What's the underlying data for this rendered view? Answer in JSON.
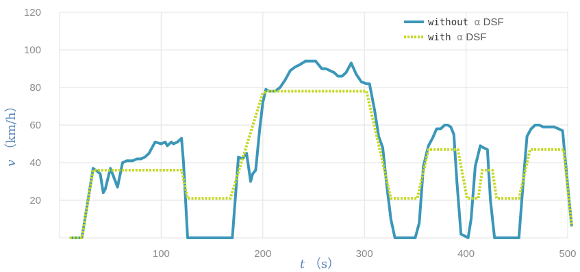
{
  "chart_data": {
    "type": "line",
    "title": "",
    "xlabel": {
      "var": "t",
      "unit": "（s）"
    },
    "ylabel": {
      "var": "v",
      "unit": "（km/h）"
    },
    "xlim": [
      0,
      500
    ],
    "ylim": [
      0,
      120
    ],
    "xticks": [
      100,
      200,
      300,
      400,
      500
    ],
    "yticks": [
      20,
      40,
      60,
      80,
      100,
      120
    ],
    "grid": true,
    "legend_position": "top-right",
    "series": [
      {
        "name": "without α DSF",
        "legend": {
          "prefix": "without ",
          "symbol": "α",
          "suffix": "DSF"
        },
        "color": "#3b97b8",
        "style": "solid",
        "points": [
          [
            10,
            0
          ],
          [
            22,
            0
          ],
          [
            33,
            37
          ],
          [
            38,
            35
          ],
          [
            40,
            34
          ],
          [
            43,
            24
          ],
          [
            45,
            26
          ],
          [
            50,
            37
          ],
          [
            55,
            30
          ],
          [
            57,
            27
          ],
          [
            62,
            40
          ],
          [
            66,
            41
          ],
          [
            72,
            41
          ],
          [
            76,
            42
          ],
          [
            80,
            42
          ],
          [
            84,
            43
          ],
          [
            88,
            45
          ],
          [
            94,
            51
          ],
          [
            100,
            50
          ],
          [
            104,
            51
          ],
          [
            106,
            49
          ],
          [
            110,
            51
          ],
          [
            112,
            50
          ],
          [
            116,
            51
          ],
          [
            120,
            53
          ],
          [
            122,
            40
          ],
          [
            126,
            0
          ],
          [
            130,
            0
          ],
          [
            170,
            0
          ],
          [
            176,
            43
          ],
          [
            180,
            42
          ],
          [
            184,
            45
          ],
          [
            188,
            30
          ],
          [
            190,
            34
          ],
          [
            193,
            36
          ],
          [
            197,
            58
          ],
          [
            200,
            72
          ],
          [
            203,
            79
          ],
          [
            206,
            78
          ],
          [
            212,
            78
          ],
          [
            217,
            80
          ],
          [
            222,
            84
          ],
          [
            227,
            89
          ],
          [
            232,
            91
          ],
          [
            236,
            92
          ],
          [
            242,
            94
          ],
          [
            252,
            94
          ],
          [
            258,
            90
          ],
          [
            262,
            90
          ],
          [
            266,
            89
          ],
          [
            270,
            88
          ],
          [
            274,
            86
          ],
          [
            278,
            86
          ],
          [
            282,
            88
          ],
          [
            287,
            93
          ],
          [
            292,
            87
          ],
          [
            297,
            83
          ],
          [
            302,
            82
          ],
          [
            305,
            82
          ],
          [
            310,
            68
          ],
          [
            314,
            54
          ],
          [
            318,
            48
          ],
          [
            322,
            28
          ],
          [
            326,
            10
          ],
          [
            330,
            0
          ],
          [
            350,
            0
          ],
          [
            354,
            8
          ],
          [
            358,
            38
          ],
          [
            363,
            49
          ],
          [
            367,
            53
          ],
          [
            371,
            58
          ],
          [
            375,
            58
          ],
          [
            379,
            60
          ],
          [
            382,
            60
          ],
          [
            385,
            59
          ],
          [
            388,
            55
          ],
          [
            391,
            30
          ],
          [
            395,
            2
          ],
          [
            402,
            0
          ],
          [
            405,
            10
          ],
          [
            409,
            38
          ],
          [
            414,
            49
          ],
          [
            417,
            48
          ],
          [
            421,
            47
          ],
          [
            424,
            20
          ],
          [
            428,
            0
          ],
          [
            452,
            0
          ],
          [
            456,
            28
          ],
          [
            460,
            54
          ],
          [
            464,
            58
          ],
          [
            468,
            60
          ],
          [
            472,
            60
          ],
          [
            476,
            59
          ],
          [
            487,
            59
          ],
          [
            491,
            58
          ],
          [
            495,
            57
          ],
          [
            500,
            28
          ],
          [
            504,
            6
          ]
        ]
      },
      {
        "name": "with α DSF",
        "legend": {
          "prefix": "with ",
          "symbol": "α",
          "suffix": "DSF"
        },
        "color": "#c5d825",
        "style": "dotted",
        "points": [
          [
            10,
            0
          ],
          [
            22,
            0
          ],
          [
            33,
            36
          ],
          [
            120,
            36
          ],
          [
            126,
            21
          ],
          [
            168,
            21
          ],
          [
            200,
            77
          ],
          [
            205,
            78
          ],
          [
            302,
            78
          ],
          [
            326,
            21
          ],
          [
            352,
            21
          ],
          [
            363,
            47
          ],
          [
            392,
            47
          ],
          [
            401,
            21
          ],
          [
            412,
            21
          ],
          [
            416,
            36
          ],
          [
            426,
            36
          ],
          [
            430,
            21
          ],
          [
            452,
            21
          ],
          [
            463,
            47
          ],
          [
            496,
            47
          ],
          [
            504,
            6
          ]
        ]
      }
    ]
  }
}
